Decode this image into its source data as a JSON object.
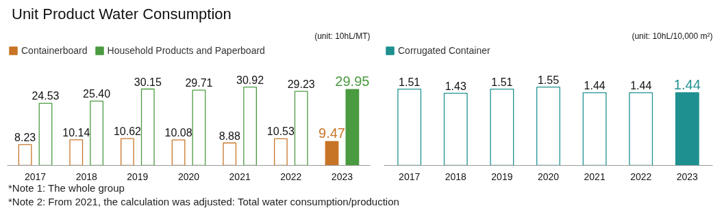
{
  "chart_data": [
    {
      "type": "bar",
      "title": "Unit Product Water Consumption",
      "subtitle": "(unit: 10hL/MT)",
      "categories": [
        "2017",
        "2018",
        "2019",
        "2020",
        "2021",
        "2022",
        "2023"
      ],
      "series": [
        {
          "name": "Containerboard",
          "color": "#c87426",
          "values": [
            8.23,
            10.14,
            10.62,
            10.08,
            8.88,
            10.53,
            9.47
          ]
        },
        {
          "name": "Household Products and Paperboard",
          "color": "#4a9a3f",
          "values": [
            24.53,
            25.4,
            30.15,
            29.71,
            30.92,
            29.23,
            29.95
          ],
          "value_labels": [
            "24.53",
            "25.40",
            "30.15",
            "29.71",
            "30.92",
            "29.23",
            "29.95"
          ]
        }
      ],
      "data_labels": true,
      "legend": "top left",
      "grid": false,
      "annotations": [
        "*Note 1: The whole group",
        "*Note 2: From 2021, the calculation was adjusted: Total water consumption/production"
      ]
    },
    {
      "type": "bar",
      "subtitle": "(unit: 10hL/10,000 m²)",
      "categories": [
        "2017",
        "2018",
        "2019",
        "2020",
        "2021",
        "2022",
        "2023"
      ],
      "series": [
        {
          "name": "Corrugated Container",
          "color": "#1f9090",
          "values": [
            1.51,
            1.43,
            1.51,
            1.55,
            1.44,
            1.44,
            1.44
          ]
        }
      ],
      "data_labels": true,
      "legend": "top left",
      "grid": false
    }
  ]
}
